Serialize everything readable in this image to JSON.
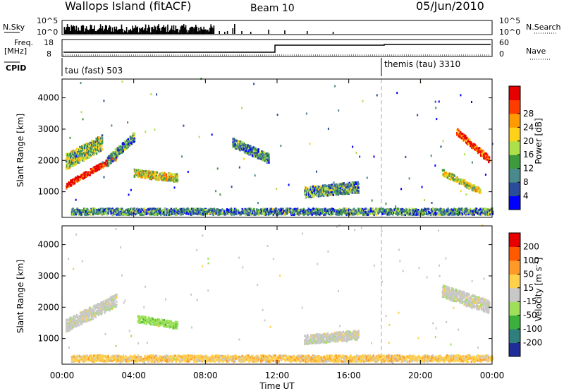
{
  "header": {
    "site": "Wallops Island (fitACF)",
    "beam": "Beam 10",
    "date": "05/Jun/2010"
  },
  "nsky_panel": {
    "left_label": "N.Sky",
    "left_ticks": [
      "10^5",
      "10^0"
    ],
    "right_ticks": [
      "10^5",
      "10^0"
    ],
    "right_label": "N.Search"
  },
  "freq_panel": {
    "left_label_1": "Freq.",
    "left_label_2": "[MHz]",
    "left_ticks": [
      "18",
      "8"
    ],
    "right_ticks": [
      "60",
      "0"
    ],
    "right_label": "Nave"
  },
  "cpid_panel": {
    "label": "CPID",
    "modes": [
      {
        "start_hour": 0,
        "name": "tau (fast) 503"
      },
      {
        "start_hour": 18,
        "name": "themis (tau) 3310"
      }
    ]
  },
  "x_axis": {
    "title": "Time UT",
    "ticks": [
      "00:00",
      "04:00",
      "08:00",
      "12:00",
      "16:00",
      "20:00",
      "00:00"
    ],
    "range": [
      0,
      24
    ]
  },
  "chart_data": [
    {
      "type": "heatmap",
      "name": "power",
      "ylabel": "Slant Range [km]",
      "yticks": [
        "1000",
        "2000",
        "3000",
        "4000"
      ],
      "ylim": [
        180,
        4600
      ],
      "colorbar_label": "Power [dB]",
      "colorbar_ticks": [
        "4",
        "8",
        "12",
        "16",
        "20",
        "24",
        "28"
      ],
      "colorscale": [
        "#0000ff",
        "#2a4d9a",
        "#4a8a8c",
        "#3d9a3d",
        "#aee04a",
        "#ffd21a",
        "#ff9a00",
        "#ff3c00",
        "#e60000"
      ],
      "regions": [
        {
          "t": [
            0.2,
            3.0
          ],
          "r_start": [
            1100,
            2000
          ],
          "r_width": 180,
          "level": 0.95
        },
        {
          "t": [
            0.2,
            2.2
          ],
          "r_start": [
            1700,
            2300
          ],
          "r_width": 500,
          "level": 0.45
        },
        {
          "t": [
            4.0,
            6.4
          ],
          "r_start": [
            1450,
            1300
          ],
          "r_width": 250,
          "level": 0.55
        },
        {
          "t": [
            2.5,
            4.0
          ],
          "r_start": [
            1800,
            2600
          ],
          "r_width": 300,
          "level": 0.3
        },
        {
          "t": [
            13.5,
            16.5
          ],
          "r_start": [
            800,
            950
          ],
          "r_width": 350,
          "level": 0.35
        },
        {
          "t": [
            9.5,
            11.5
          ],
          "r_start": [
            2400,
            1900
          ],
          "r_width": 300,
          "level": 0.3
        },
        {
          "t": [
            22.0,
            23.8
          ],
          "r_start": [
            2800,
            1900
          ],
          "r_width": 220,
          "level": 0.9
        },
        {
          "t": [
            21.2,
            23.3
          ],
          "r_start": [
            1500,
            900
          ],
          "r_width": 200,
          "level": 0.5
        },
        {
          "t": [
            0.5,
            24.0
          ],
          "r_start": [
            250,
            250
          ],
          "r_width": 200,
          "level": 0.3
        }
      ]
    },
    {
      "type": "heatmap",
      "name": "velocity",
      "ylabel": "Slant Range [km]",
      "yticks": [
        "1000",
        "2000",
        "3000",
        "4000"
      ],
      "ylim": [
        180,
        4600
      ],
      "colorbar_label": "Velocity [m s^-1]",
      "colorbar_ticks": [
        "200",
        "100",
        "50",
        "15",
        "-15",
        "-50",
        "-100",
        "-200"
      ],
      "colorscale": [
        "#1e2d9a",
        "#2f7f7f",
        "#3cb03c",
        "#9ee05a",
        "#c8c8c8",
        "#ffd04a",
        "#ff9a2a",
        "#ff5a00",
        "#e60000"
      ],
      "regions": [
        {
          "t": [
            0.2,
            3.0
          ],
          "r_start": [
            1200,
            2000
          ],
          "r_width": 400,
          "v": 0
        },
        {
          "t": [
            4.2,
            6.4
          ],
          "r_start": [
            1500,
            1300
          ],
          "r_width": 220,
          "v": 50
        },
        {
          "t": [
            13.5,
            16.5
          ],
          "r_start": [
            800,
            950
          ],
          "r_width": 300,
          "v": 0
        },
        {
          "t": [
            21.2,
            23.8
          ],
          "r_start": [
            2300,
            1800
          ],
          "r_width": 400,
          "v": 0
        },
        {
          "t": [
            0.5,
            24.0
          ],
          "r_start": [
            250,
            250
          ],
          "r_width": 200,
          "v": -30
        }
      ]
    }
  ]
}
